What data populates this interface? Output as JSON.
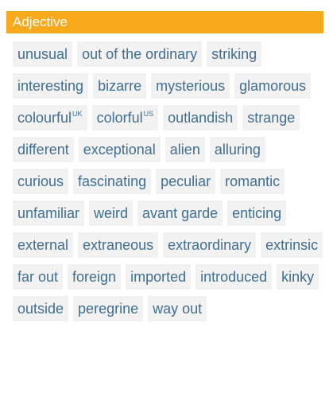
{
  "header": {
    "title": "Adjective"
  },
  "words": [
    {
      "label": "unusual"
    },
    {
      "label": "out of the ordinary"
    },
    {
      "label": "striking"
    },
    {
      "label": "interesting"
    },
    {
      "label": "bizarre"
    },
    {
      "label": "mysterious"
    },
    {
      "label": "glamorous"
    },
    {
      "label": "colourful",
      "tag": "UK"
    },
    {
      "label": "colorful",
      "tag": "US"
    },
    {
      "label": "outlandish"
    },
    {
      "label": "strange"
    },
    {
      "label": "different"
    },
    {
      "label": "exceptional"
    },
    {
      "label": "alien"
    },
    {
      "label": "alluring"
    },
    {
      "label": "curious"
    },
    {
      "label": "fascinating"
    },
    {
      "label": "peculiar"
    },
    {
      "label": "romantic"
    },
    {
      "label": "unfamiliar"
    },
    {
      "label": "weird"
    },
    {
      "label": "avant garde"
    },
    {
      "label": "enticing"
    },
    {
      "label": "external"
    },
    {
      "label": "extraneous"
    },
    {
      "label": "extraordinary"
    },
    {
      "label": "extrinsic"
    },
    {
      "label": "far out"
    },
    {
      "label": "foreign"
    },
    {
      "label": "imported"
    },
    {
      "label": "introduced"
    },
    {
      "label": "kinky"
    },
    {
      "label": "outside"
    },
    {
      "label": "peregrine"
    },
    {
      "label": "way out"
    }
  ],
  "colors": {
    "header_bg": "#f7a81b",
    "chip_bg": "#f2f2f2",
    "chip_text": "#3f6f92"
  }
}
